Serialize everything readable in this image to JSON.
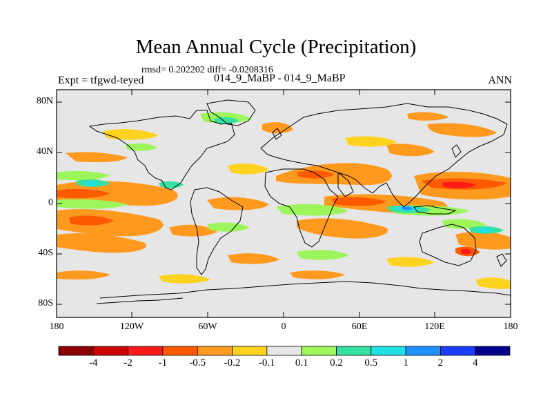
{
  "header": {
    "title": "Mean Annual Cycle (Precipitation)",
    "stats": "rmsd= 0.202202 diff= -0.0208316",
    "experiment": "Expt = tfgwd-teyed",
    "experiment_ids": "014_9_MaBP - 014_9_MaBP",
    "season": "ANN"
  },
  "axes": {
    "lat_ticks": [
      "80N",
      "40N",
      "0",
      "40S",
      "80S"
    ],
    "lon_ticks": [
      "180",
      "120W",
      "60W",
      "0",
      "60E",
      "120E",
      "180"
    ]
  },
  "colorbar": {
    "labels": [
      "-4",
      "-2",
      "-1",
      "-0.5",
      "-0.2",
      "-0.1",
      "0.1",
      "0.2",
      "0.5",
      "1",
      "2",
      "4"
    ],
    "colors": [
      "#8b0000",
      "#cc0000",
      "#ff1a1a",
      "#ff5a00",
      "#ff9a1f",
      "#ffd21f",
      "#e6e6e6",
      "#9cf55a",
      "#35e0a0",
      "#20e0e6",
      "#1e90ff",
      "#1a3cff",
      "#00008b"
    ]
  },
  "map_colors": {
    "background": "#e6e6e6",
    "coast": "#000000"
  }
}
